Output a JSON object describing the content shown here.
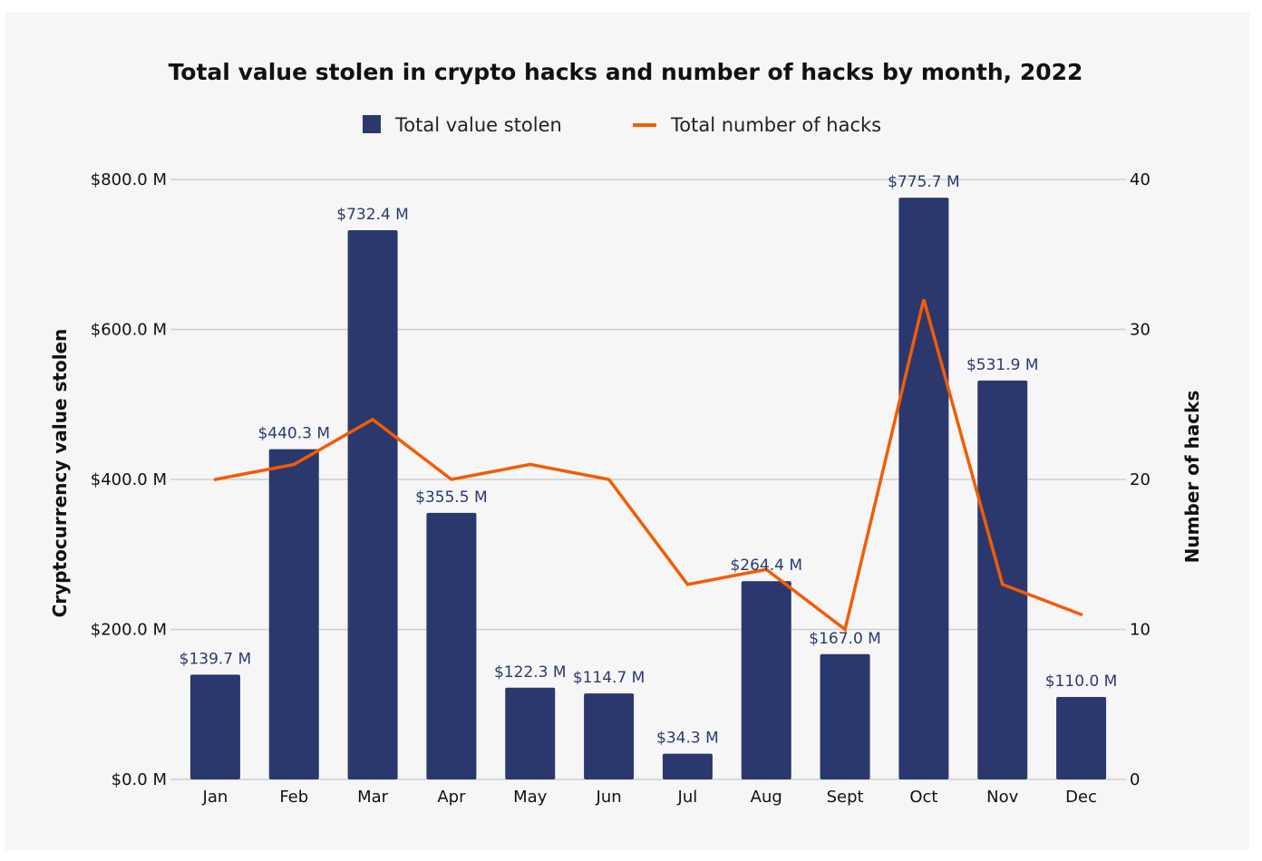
{
  "chart_data": {
    "type": "bar",
    "title": "Total value stolen in crypto hacks and number of hacks by month, 2022",
    "categories": [
      "Jan",
      "Feb",
      "Mar",
      "Apr",
      "May",
      "Jun",
      "Jul",
      "Aug",
      "Sept",
      "Oct",
      "Nov",
      "Dec"
    ],
    "series": [
      {
        "name": "Total value stolen",
        "type": "bar",
        "axis": "left",
        "unit": "$M",
        "values": [
          139.7,
          440.3,
          732.4,
          355.5,
          122.3,
          114.7,
          34.3,
          264.4,
          167.0,
          775.7,
          531.9,
          110.0
        ],
        "labels": [
          "$139.7 M",
          "$440.3 M",
          "$732.4 M",
          "$355.5 M",
          "$122.3 M",
          "$114.7 M",
          "$34.3 M",
          "$264.4 M",
          "$167.0 M",
          "$775.7 M",
          "$531.9 M",
          "$110.0 M"
        ],
        "color": "#2b386e"
      },
      {
        "name": "Total number of hacks",
        "type": "line",
        "axis": "right",
        "values": [
          20,
          21,
          24,
          20,
          21,
          20,
          13,
          14,
          10,
          32,
          13,
          11
        ],
        "color": "#f25c05"
      }
    ],
    "ylabel": "Cryptocurrency value stolen",
    "y2label": "Number of hacks",
    "ylim": [
      0,
      800
    ],
    "y2lim": [
      0,
      40
    ],
    "yticks": [
      "$0.0 M",
      "$200.0 M",
      "$400.0 M",
      "$600.0 M",
      "$800.0 M"
    ],
    "y2ticks": [
      "0",
      "10",
      "20",
      "30",
      "40"
    ],
    "grid": true,
    "legend": "top-center"
  }
}
